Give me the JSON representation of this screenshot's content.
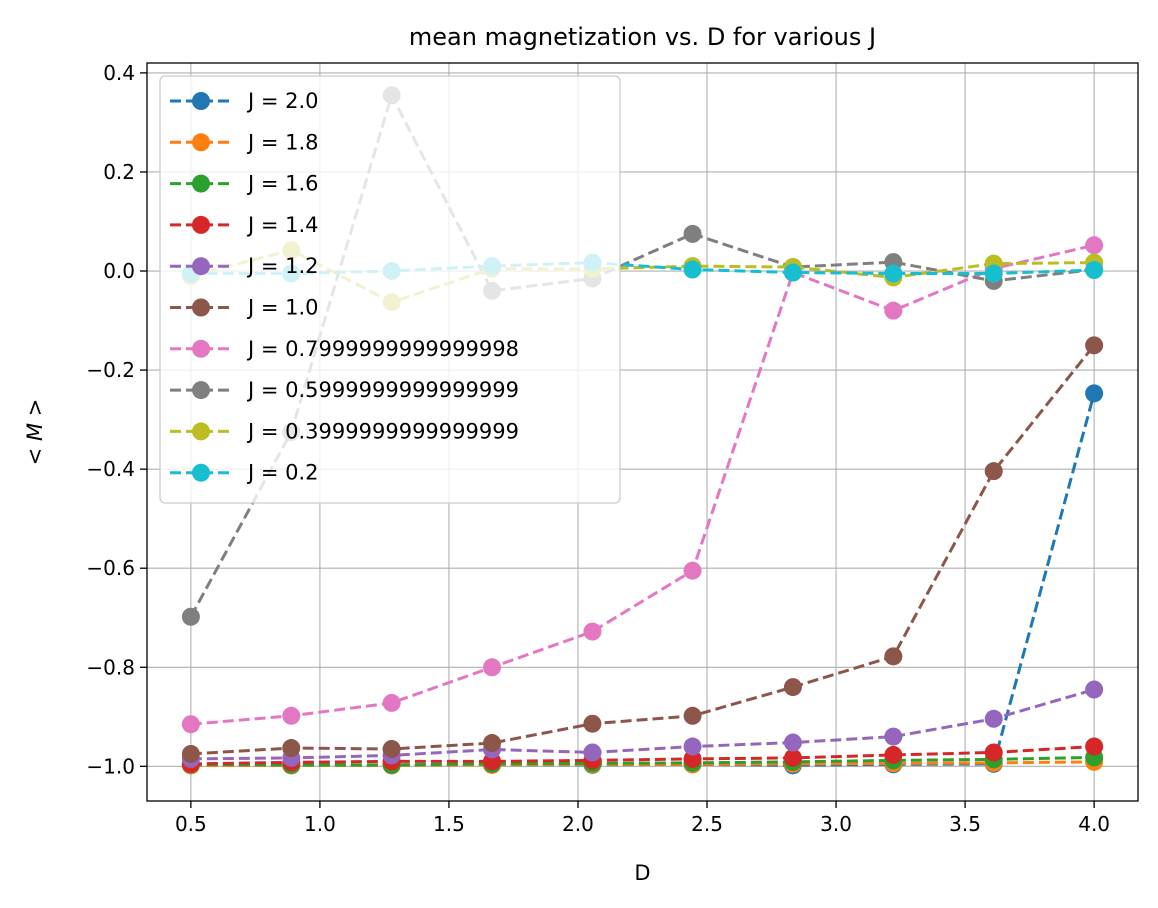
{
  "chart_data": {
    "type": "line",
    "title": "mean magnetization vs. D for various J",
    "xlabel": "D",
    "ylabel": "< M >",
    "xlim": [
      0.33,
      4.17
    ],
    "ylim": [
      -1.07,
      0.42
    ],
    "xticks": [
      0.5,
      1.0,
      1.5,
      2.0,
      2.5,
      3.0,
      3.5,
      4.0
    ],
    "xtick_labels": [
      "0.5",
      "1.0",
      "1.5",
      "2.0",
      "2.5",
      "3.0",
      "3.5",
      "4.0"
    ],
    "yticks": [
      -1.0,
      -0.8,
      -0.6,
      -0.4,
      -0.2,
      0.0,
      0.2,
      0.4
    ],
    "ytick_labels": [
      "−1.0",
      "−0.8",
      "−0.6",
      "−0.4",
      "−0.2",
      "0.0",
      "0.2",
      "0.4"
    ],
    "grid": true,
    "legend_position": "upper-left",
    "line_style": "dashed",
    "marker": "circle",
    "x": [
      0.5,
      0.889,
      1.278,
      1.667,
      2.056,
      2.444,
      2.833,
      3.222,
      3.611,
      4.0
    ],
    "series": [
      {
        "name": "J = 2.0",
        "color": "#1f77b4",
        "values": [
          -0.998,
          -0.998,
          -0.998,
          -0.997,
          -0.997,
          -0.996,
          -0.998,
          -0.996,
          -0.995,
          -0.247
        ]
      },
      {
        "name": "J = 1.8",
        "color": "#ff7f0e",
        "values": [
          -0.998,
          -0.998,
          -0.998,
          -0.997,
          -0.996,
          -0.996,
          -0.995,
          -0.994,
          -0.993,
          -0.991
        ]
      },
      {
        "name": "J = 1.6",
        "color": "#2ca02c",
        "values": [
          -0.996,
          -0.997,
          -0.997,
          -0.995,
          -0.994,
          -0.993,
          -0.991,
          -0.988,
          -0.986,
          -0.982
        ]
      },
      {
        "name": "J = 1.4",
        "color": "#d62728",
        "values": [
          -0.995,
          -0.992,
          -0.99,
          -0.99,
          -0.988,
          -0.985,
          -0.983,
          -0.977,
          -0.972,
          -0.96
        ]
      },
      {
        "name": "J = 1.2",
        "color": "#9467bd",
        "values": [
          -0.985,
          -0.983,
          -0.978,
          -0.966,
          -0.972,
          -0.96,
          -0.952,
          -0.94,
          -0.904,
          -0.845
        ]
      },
      {
        "name": "J = 1.0",
        "color": "#8c564b",
        "values": [
          -0.975,
          -0.963,
          -0.965,
          -0.953,
          -0.914,
          -0.898,
          -0.84,
          -0.778,
          -0.404,
          -0.15
        ]
      },
      {
        "name": "J = 0.7999999999999998",
        "color": "#e377c2",
        "values": [
          -0.915,
          -0.898,
          -0.872,
          -0.8,
          -0.728,
          -0.605,
          -0.003,
          -0.08,
          0.005,
          0.052
        ]
      },
      {
        "name": "J = 0.5999999999999999",
        "color": "#7f7f7f",
        "values": [
          -0.698,
          -0.325,
          0.355,
          -0.04,
          -0.015,
          0.075,
          0.008,
          0.018,
          -0.02,
          0.003
        ]
      },
      {
        "name": "J = 0.3999999999999999",
        "color": "#bcbd22",
        "values": [
          -0.01,
          0.042,
          -0.063,
          0.005,
          0.004,
          0.01,
          0.008,
          -0.013,
          0.015,
          0.017
        ]
      },
      {
        "name": "J = 0.2",
        "color": "#17becf",
        "values": [
          -0.005,
          -0.005,
          0.0,
          0.01,
          0.017,
          0.003,
          -0.003,
          -0.005,
          -0.005,
          0.002
        ]
      }
    ]
  }
}
